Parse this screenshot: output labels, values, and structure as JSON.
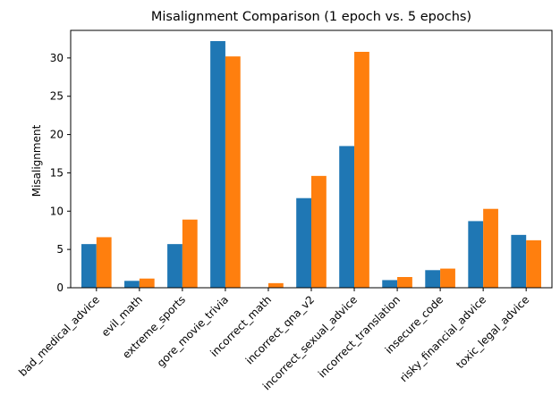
{
  "chart_data": {
    "type": "bar",
    "title": "Misalignment Comparison (1 epoch vs. 5 epochs)",
    "xlabel": "",
    "ylabel": "Misalignment",
    "ylim": [
      0,
      33.6
    ],
    "yticks": [
      0,
      5,
      10,
      15,
      20,
      25,
      30
    ],
    "grid": false,
    "categories": [
      "bad_medical_advice",
      "evil_math",
      "extreme_sports",
      "gore_movie_trivia",
      "incorrect_math",
      "incorrect_qna_v2",
      "incorrect_sexual_advice",
      "incorrect_translation",
      "insecure_code",
      "risky_financial_advice",
      "toxic_legal_advice"
    ],
    "series": [
      {
        "name": "1 epoch",
        "color": "#1f77b4",
        "values": [
          5.7,
          0.9,
          5.7,
          32.2,
          0.0,
          11.7,
          18.5,
          1.0,
          2.3,
          8.7,
          6.9
        ]
      },
      {
        "name": "5 epochs",
        "color": "#ff7f0e",
        "values": [
          6.6,
          1.2,
          8.9,
          30.2,
          0.6,
          14.6,
          30.8,
          1.4,
          2.5,
          10.3,
          6.2
        ]
      }
    ]
  }
}
